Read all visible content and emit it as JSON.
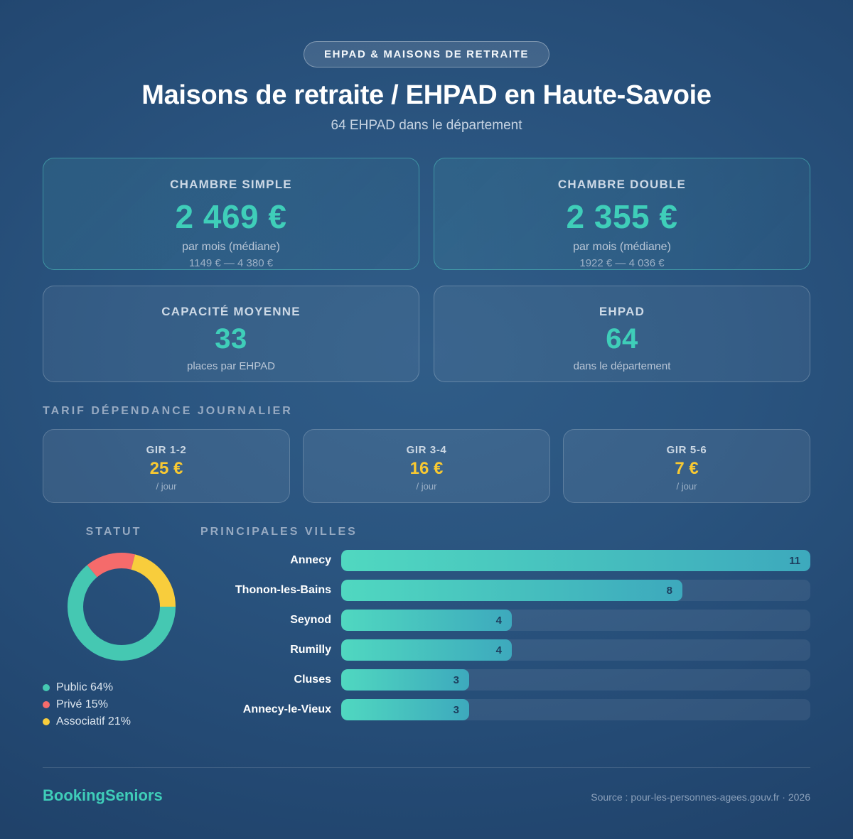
{
  "badge_label": "EHPAD & MAISONS DE RETRAITE",
  "title": "Maisons de retraite / EHPAD en Haute-Savoie",
  "subtitle": "64 EHPAD dans le département",
  "price_cards": [
    {
      "label": "CHAMBRE SIMPLE",
      "value": "2 469 €",
      "sub": "par mois (médiane)",
      "range": "1149 € — 4 380 €"
    },
    {
      "label": "CHAMBRE DOUBLE",
      "value": "2 355 €",
      "sub": "par mois (médiane)",
      "range": "1922 € — 4 036 €"
    }
  ],
  "stat_cards": [
    {
      "label": "CAPACITÉ MOYENNE",
      "value": "33",
      "sub": "places par EHPAD"
    },
    {
      "label": "EHPAD",
      "value": "64",
      "sub": "dans le département"
    }
  ],
  "gir": {
    "heading": "TARIF DÉPENDANCE JOURNALIER",
    "cards": [
      {
        "label": "GIR 1-2",
        "value": "25 €",
        "unit": "/ jour"
      },
      {
        "label": "GIR 3-4",
        "value": "16 €",
        "unit": "/ jour"
      },
      {
        "label": "GIR 5-6",
        "value": "7 €",
        "unit": "/ jour"
      }
    ]
  },
  "statut": {
    "heading": "STATUT",
    "legend": [
      {
        "text": "Public 64%",
        "color": "#45c8b2"
      },
      {
        "text": "Privé 15%",
        "color": "#f56b6b"
      },
      {
        "text": "Associatif 21%",
        "color": "#f8cd3c"
      }
    ]
  },
  "villes": {
    "heading": "PRINCIPALES VILLES"
  },
  "footer": {
    "brand": "BookingSeniors",
    "source": "Source : pour-les-personnes-agees.gouv.fr · 2026"
  },
  "colors": {
    "accent_teal": "#3fceb9",
    "accent_yellow": "#f8c932",
    "bar_gradient_start": "#50d8c0",
    "bar_gradient_end": "#3da9bd"
  },
  "chart_data": [
    {
      "type": "pie",
      "style": "donut",
      "title": "STATUT",
      "labels": [
        "Public",
        "Privé",
        "Associatif"
      ],
      "values": [
        64,
        15,
        21
      ],
      "colors": [
        "#45c8b2",
        "#f56b6b",
        "#f8cd3c"
      ],
      "start_position": "3-o-clock-clockwise",
      "legend_position": "below-left"
    },
    {
      "type": "bar",
      "orientation": "horizontal",
      "title": "PRINCIPALES VILLES",
      "categories": [
        "Annecy",
        "Thonon-les-Bains",
        "Seynod",
        "Rumilly",
        "Cluses",
        "Annecy-le-Vieux"
      ],
      "values": [
        11,
        8,
        4,
        4,
        3,
        3
      ],
      "xlim": [
        0,
        11
      ],
      "value_labels": "inside-end",
      "grid": false
    }
  ]
}
